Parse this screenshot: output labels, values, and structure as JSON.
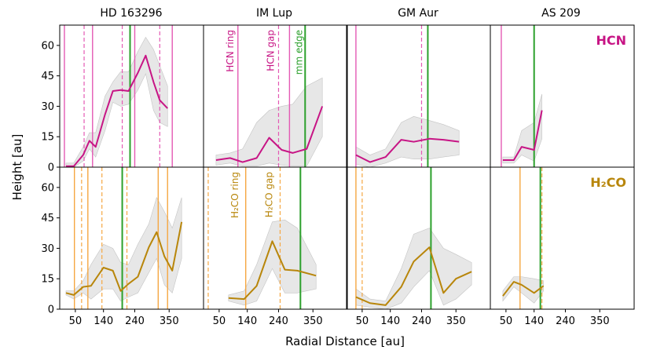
{
  "chart_data": {
    "type": "line",
    "title": "",
    "xlabel": "Radial Distance [au]",
    "ylabel": "Height [au]",
    "xlim": [
      0,
      460
    ],
    "ylim": [
      0,
      70
    ],
    "xticks": [
      50,
      140,
      240,
      350
    ],
    "yticks": [
      0,
      15,
      30,
      45,
      60
    ],
    "panel_titles": [
      "HD 163296",
      "IM Lup",
      "GM Aur",
      "AS 209"
    ],
    "rows": [
      {
        "molecule": "HCN",
        "molecule_label": "HCN",
        "color": "#c71585"
      },
      {
        "molecule": "H2CO",
        "molecule_label": "H₂CO",
        "color": "#b8860b"
      }
    ],
    "vline_colors": {
      "hcn": "#e45ab4",
      "h2co": "#f5a742",
      "mm": "#2ca02c"
    },
    "band_color": "#d3d3d3",
    "annotations": {
      "hcn_ring": "HCN ring",
      "hcn_gap": "HCN gap",
      "mm_edge": "mm edge",
      "h2co_ring": "H₂CO ring",
      "h2co_gap": "H₂CO gap"
    },
    "panels": [
      {
        "disk": "HD 163296",
        "molecule": "HCN",
        "series": [
          [
            20,
            0.5
          ],
          [
            45,
            0.5
          ],
          [
            75,
            6
          ],
          [
            95,
            13
          ],
          [
            115,
            10
          ],
          [
            145,
            26
          ],
          [
            170,
            37.5
          ],
          [
            195,
            38
          ],
          [
            220,
            37.5
          ],
          [
            250,
            46.5
          ],
          [
            275,
            55
          ],
          [
            300,
            42
          ],
          [
            320,
            33
          ],
          [
            345,
            29
          ]
        ],
        "band_upper": [
          [
            20,
            2
          ],
          [
            45,
            2
          ],
          [
            75,
            10
          ],
          [
            95,
            17
          ],
          [
            115,
            17
          ],
          [
            145,
            35
          ],
          [
            170,
            42
          ],
          [
            195,
            47
          ],
          [
            220,
            47
          ],
          [
            250,
            57
          ],
          [
            275,
            64
          ],
          [
            300,
            58
          ],
          [
            320,
            50
          ],
          [
            345,
            40
          ]
        ],
        "band_lower": [
          [
            20,
            0
          ],
          [
            45,
            0
          ],
          [
            75,
            3
          ],
          [
            95,
            9
          ],
          [
            115,
            5
          ],
          [
            145,
            18
          ],
          [
            170,
            32
          ],
          [
            195,
            30
          ],
          [
            220,
            31
          ],
          [
            250,
            38
          ],
          [
            275,
            46
          ],
          [
            300,
            28
          ],
          [
            320,
            22
          ],
          [
            345,
            20
          ]
        ],
        "solid_lines": [
          15,
          105,
          240,
          360
        ],
        "dashed_lines": [
          78,
          200,
          320
        ],
        "mm_lines": [
          225
        ]
      },
      {
        "disk": "IM Lup",
        "molecule": "HCN",
        "series": [
          [
            40,
            3.5
          ],
          [
            85,
            4.5
          ],
          [
            125,
            2.5
          ],
          [
            170,
            4.5
          ],
          [
            210,
            14.5
          ],
          [
            250,
            8.5
          ],
          [
            285,
            7
          ],
          [
            330,
            9
          ],
          [
            380,
            30
          ]
        ],
        "band_upper": [
          [
            40,
            6
          ],
          [
            85,
            7
          ],
          [
            125,
            9
          ],
          [
            170,
            22
          ],
          [
            210,
            28
          ],
          [
            250,
            30
          ],
          [
            285,
            31
          ],
          [
            330,
            40
          ],
          [
            380,
            44
          ]
        ],
        "band_lower": [
          [
            40,
            1
          ],
          [
            85,
            2
          ],
          [
            125,
            0.5
          ],
          [
            170,
            0.5
          ],
          [
            210,
            2
          ],
          [
            250,
            1
          ],
          [
            285,
            0.5
          ],
          [
            330,
            0.5
          ],
          [
            380,
            15
          ]
        ],
        "solid_lines": [
          110,
          275
        ],
        "dashed_lines": [
          240
        ],
        "mm_lines": [
          325
        ],
        "labels": [
          {
            "key": "hcn_ring",
            "x": 85
          },
          {
            "key": "hcn_gap",
            "x": 215
          },
          {
            "key": "mm_edge",
            "x": 305
          }
        ]
      },
      {
        "disk": "GM Aur",
        "molecule": "HCN",
        "series": [
          [
            30,
            6
          ],
          [
            75,
            2.5
          ],
          [
            125,
            5
          ],
          [
            175,
            13.5
          ],
          [
            215,
            12.5
          ],
          [
            265,
            14
          ],
          [
            310,
            13.5
          ],
          [
            360,
            12.5
          ]
        ],
        "band_upper": [
          [
            30,
            10
          ],
          [
            75,
            6
          ],
          [
            125,
            9
          ],
          [
            175,
            22
          ],
          [
            215,
            25
          ],
          [
            265,
            23
          ],
          [
            310,
            21
          ],
          [
            360,
            18
          ]
        ],
        "band_lower": [
          [
            30,
            1.5
          ],
          [
            75,
            0
          ],
          [
            125,
            2
          ],
          [
            175,
            5
          ],
          [
            215,
            4
          ],
          [
            265,
            4
          ],
          [
            310,
            5
          ],
          [
            360,
            6
          ]
        ],
        "solid_lines": [
          30
        ],
        "dashed_lines": [
          240
        ],
        "mm_lines": [
          260
        ]
      },
      {
        "disk": "AS 209",
        "molecule": "HCN",
        "series": [
          [
            40,
            3.5
          ],
          [
            75,
            3.5
          ],
          [
            100,
            10
          ],
          [
            140,
            8.5
          ],
          [
            165,
            28
          ]
        ],
        "band_upper": [
          [
            40,
            5
          ],
          [
            75,
            5
          ],
          [
            100,
            18
          ],
          [
            140,
            22
          ],
          [
            165,
            36
          ]
        ],
        "band_lower": [
          [
            40,
            2
          ],
          [
            75,
            2
          ],
          [
            100,
            6
          ],
          [
            140,
            3
          ],
          [
            165,
            14
          ]
        ],
        "solid_lines": [
          35
        ],
        "dashed_lines": [],
        "mm_lines": [
          140
        ]
      },
      {
        "disk": "HD 163296",
        "molecule": "H2CO",
        "series": [
          [
            20,
            8
          ],
          [
            45,
            7
          ],
          [
            75,
            11
          ],
          [
            100,
            11.5
          ],
          [
            140,
            20.5
          ],
          [
            170,
            19
          ],
          [
            195,
            9
          ],
          [
            220,
            12.5
          ],
          [
            250,
            16
          ],
          [
            285,
            30.5
          ],
          [
            310,
            38
          ],
          [
            335,
            26
          ],
          [
            360,
            19
          ],
          [
            390,
            43
          ]
        ],
        "band_upper": [
          [
            20,
            9
          ],
          [
            45,
            9
          ],
          [
            75,
            14
          ],
          [
            100,
            22
          ],
          [
            140,
            32
          ],
          [
            170,
            30
          ],
          [
            195,
            23
          ],
          [
            220,
            22
          ],
          [
            250,
            32
          ],
          [
            285,
            42
          ],
          [
            310,
            55
          ],
          [
            335,
            48
          ],
          [
            360,
            40
          ],
          [
            390,
            55
          ]
        ],
        "band_lower": [
          [
            20,
            7
          ],
          [
            45,
            5
          ],
          [
            75,
            8
          ],
          [
            100,
            5
          ],
          [
            140,
            10
          ],
          [
            170,
            10
          ],
          [
            195,
            4
          ],
          [
            220,
            6
          ],
          [
            250,
            8
          ],
          [
            285,
            18
          ],
          [
            310,
            25
          ],
          [
            335,
            12
          ],
          [
            360,
            8
          ],
          [
            390,
            25
          ]
        ],
        "solid_lines": [
          47,
          90,
          315,
          345
        ],
        "dashed_lines": [
          70,
          135,
          215
        ],
        "mm_lines": [
          200
        ]
      },
      {
        "disk": "IM Lup",
        "molecule": "H2CO",
        "series": [
          [
            80,
            5.5
          ],
          [
            130,
            5
          ],
          [
            170,
            11.5
          ],
          [
            220,
            33.5
          ],
          [
            260,
            19.5
          ],
          [
            300,
            19
          ],
          [
            360,
            16.5
          ]
        ],
        "band_upper": [
          [
            80,
            7
          ],
          [
            130,
            9
          ],
          [
            170,
            22
          ],
          [
            220,
            43
          ],
          [
            260,
            44
          ],
          [
            300,
            40
          ],
          [
            360,
            22
          ]
        ],
        "band_lower": [
          [
            80,
            4
          ],
          [
            130,
            2
          ],
          [
            170,
            4
          ],
          [
            220,
            20
          ],
          [
            260,
            8
          ],
          [
            300,
            8
          ],
          [
            360,
            10
          ]
        ],
        "solid_lines": [
          135
        ],
        "dashed_lines": [
          15,
          245
        ],
        "mm_lines": [
          310
        ],
        "labels": [
          {
            "key": "h2co_ring",
            "x": 100
          },
          {
            "key": "h2co_gap",
            "x": 210
          }
        ]
      },
      {
        "disk": "GM Aur",
        "molecule": "H2CO",
        "series": [
          [
            30,
            6
          ],
          [
            75,
            3
          ],
          [
            125,
            2
          ],
          [
            175,
            11
          ],
          [
            215,
            23.5
          ],
          [
            265,
            30.5
          ],
          [
            310,
            8
          ],
          [
            350,
            15
          ],
          [
            400,
            18.5
          ]
        ],
        "band_upper": [
          [
            30,
            10
          ],
          [
            75,
            5
          ],
          [
            125,
            4
          ],
          [
            175,
            20
          ],
          [
            215,
            37
          ],
          [
            265,
            40
          ],
          [
            310,
            30
          ],
          [
            350,
            27
          ],
          [
            400,
            23
          ]
        ],
        "band_lower": [
          [
            30,
            2
          ],
          [
            75,
            1
          ],
          [
            125,
            0
          ],
          [
            175,
            3
          ],
          [
            215,
            11
          ],
          [
            265,
            19
          ],
          [
            310,
            2
          ],
          [
            350,
            5
          ],
          [
            400,
            12
          ]
        ],
        "solid_lines": [
          30
        ],
        "dashed_lines": [
          50
        ],
        "mm_lines": [
          270
        ]
      },
      {
        "disk": "AS 209",
        "molecule": "H2CO",
        "series": [
          [
            40,
            6.5
          ],
          [
            75,
            13.5
          ],
          [
            100,
            12
          ],
          [
            140,
            8
          ],
          [
            170,
            11.5
          ]
        ],
        "band_upper": [
          [
            40,
            9
          ],
          [
            75,
            16
          ],
          [
            100,
            16
          ],
          [
            140,
            15
          ],
          [
            170,
            14
          ]
        ],
        "band_lower": [
          [
            40,
            4
          ],
          [
            75,
            11
          ],
          [
            100,
            8
          ],
          [
            140,
            3
          ],
          [
            170,
            9
          ]
        ],
        "solid_lines": [
          95
        ],
        "dashed_lines": [
          165
        ],
        "mm_lines": [
          160
        ]
      }
    ]
  }
}
